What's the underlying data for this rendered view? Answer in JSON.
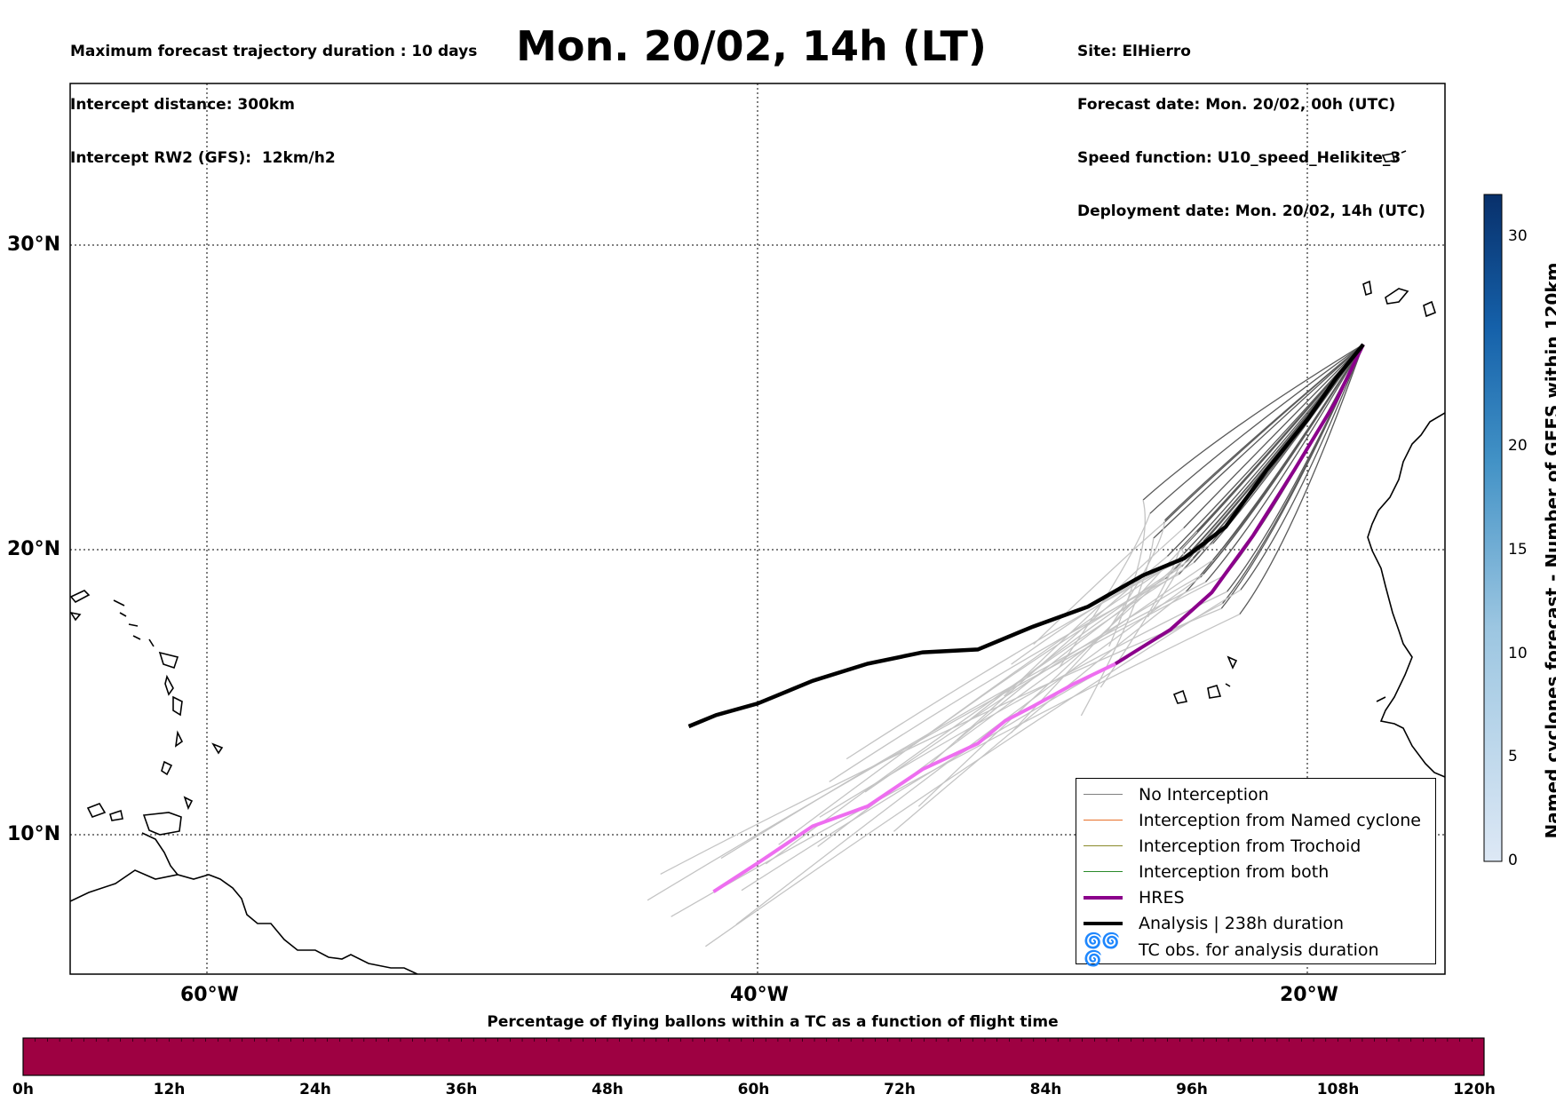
{
  "header_left": [
    "Maximum forecast trajectory duration : 10 days",
    "Intercept distance: 300km",
    "Intercept RW2 (GFS):  12km/h2"
  ],
  "title": "Mon. 20/02, 14h (LT)",
  "header_right": [
    "Site: ElHierro",
    "Forecast date: Mon. 20/02, 00h (UTC)",
    "Speed function: U10_speed_Helikite_3",
    "Deployment date: Mon. 20/02, 14h (UTC)"
  ],
  "map": {
    "lat_labels": [
      "30°N",
      "20°N",
      "10°N"
    ],
    "lon_labels": [
      "60°W",
      "40°W",
      "20°W"
    ],
    "extent": {
      "lon": [
        -65,
        -15
      ],
      "lat": [
        5.4,
        34.7
      ]
    },
    "grid": "dotted"
  },
  "legend": {
    "items": [
      {
        "label": "No Interception",
        "color": "#808080"
      },
      {
        "label": "Interception from Named cyclone",
        "color": "#e8702a"
      },
      {
        "label": "Interception from Trochoid",
        "color": "#8a8a2a"
      },
      {
        "label": "Interception from both",
        "color": "#2a8a2a"
      },
      {
        "label": "HRES",
        "color": "#8b008b"
      },
      {
        "label": "Analysis | 238h duration",
        "color": "#000000"
      },
      {
        "label": "TC obs. for analysis duration",
        "color": "#000000",
        "icon": "cyclone-symbols-icon"
      }
    ]
  },
  "right_colorbar": {
    "title": "Named cyclones forecast - Number of GEFS within 120km",
    "ticks": [
      "0",
      "5",
      "10",
      "15",
      "20",
      "30"
    ],
    "range": [
      0,
      32
    ],
    "colors": [
      "#dde8f5",
      "#9cc6e1",
      "#4292c6",
      "#08306b"
    ]
  },
  "bottom_colorbar": {
    "title": "Percentage of flying ballons within a TC as a function of flight time",
    "ticks": [
      "0h",
      "12h",
      "24h",
      "36h",
      "48h",
      "60h",
      "72h",
      "84h",
      "96h",
      "108h",
      "120h"
    ],
    "fill_color": "#9e0142"
  },
  "tracks": {
    "analysis": [
      [
        -42.5,
        13.8
      ],
      [
        -41.5,
        14.2
      ],
      [
        -40,
        14.6
      ],
      [
        -38,
        15.4
      ],
      [
        -36,
        16
      ],
      [
        -34,
        16.4
      ],
      [
        -32,
        16.5
      ],
      [
        -30,
        17.3
      ],
      [
        -28,
        18
      ],
      [
        -26,
        19.1
      ],
      [
        -24.5,
        19.7
      ],
      [
        -23,
        20.8
      ],
      [
        -21.5,
        22.8
      ],
      [
        -20,
        24.6
      ],
      [
        -19,
        26
      ],
      [
        -18,
        27.2
      ]
    ],
    "hres_early": [
      [
        -41.6,
        8.0
      ],
      [
        -40,
        9.0
      ],
      [
        -38,
        10.3
      ],
      [
        -36,
        11
      ],
      [
        -34,
        12.3
      ],
      [
        -32,
        13.2
      ],
      [
        -31,
        14
      ],
      [
        -30,
        14.5
      ],
      [
        -28.5,
        15.3
      ],
      [
        -27,
        16.0
      ]
    ],
    "hres_late": [
      [
        -27,
        16.0
      ],
      [
        -25,
        17.2
      ],
      [
        -23.5,
        18.5
      ],
      [
        -22,
        20.5
      ],
      [
        -20.5,
        22.8
      ],
      [
        -19,
        25.2
      ],
      [
        -18.5,
        26.2
      ],
      [
        -18,
        27.2
      ]
    ]
  }
}
